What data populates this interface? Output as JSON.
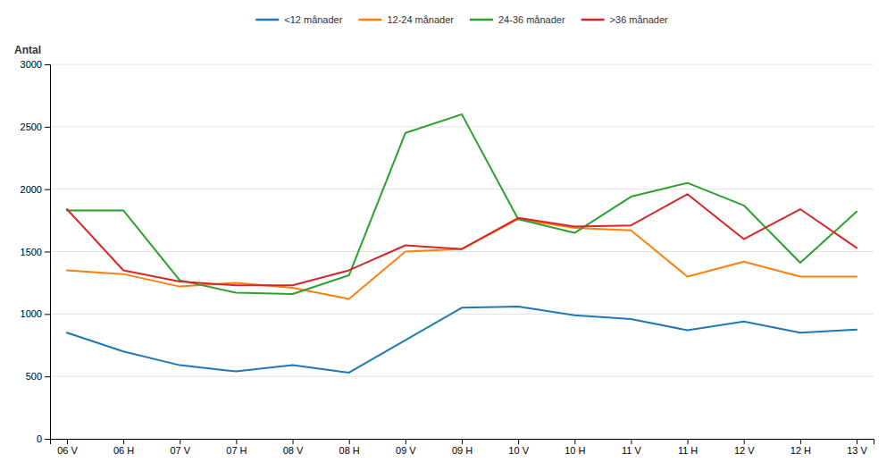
{
  "chart_data": {
    "type": "line",
    "ylabel": "Antal",
    "categories": [
      "06 V",
      "06 H",
      "07 V",
      "07 H",
      "08 V",
      "08 H",
      "09 V",
      "09 H",
      "10 V",
      "10 H",
      "11 V",
      "11 H",
      "12 V",
      "12 H",
      "13 V"
    ],
    "series": [
      {
        "name": "<12 månader",
        "values": [
          850,
          700,
          590,
          540,
          590,
          530,
          790,
          1050,
          1060,
          990,
          960,
          870,
          940,
          850,
          875
        ]
      },
      {
        "name": "12-24 månader",
        "values": [
          1350,
          1320,
          1220,
          1250,
          1210,
          1120,
          1500,
          1520,
          1760,
          1690,
          1670,
          1300,
          1420,
          1300,
          1300
        ]
      },
      {
        "name": "24-36 månader",
        "values": [
          1830,
          1830,
          1270,
          1170,
          1160,
          1310,
          2450,
          2600,
          1760,
          1650,
          1940,
          2050,
          1870,
          1410,
          1820
        ]
      },
      {
        "name": ">36 månader",
        "values": [
          1840,
          1350,
          1260,
          1230,
          1230,
          1350,
          1550,
          1520,
          1770,
          1700,
          1710,
          1960,
          1600,
          1840,
          1530
        ]
      }
    ],
    "ylim": [
      0,
      3000
    ],
    "yticks": [
      0,
      500,
      1000,
      1500,
      2000,
      2500,
      3000
    ],
    "grid": true,
    "legend": "top"
  }
}
